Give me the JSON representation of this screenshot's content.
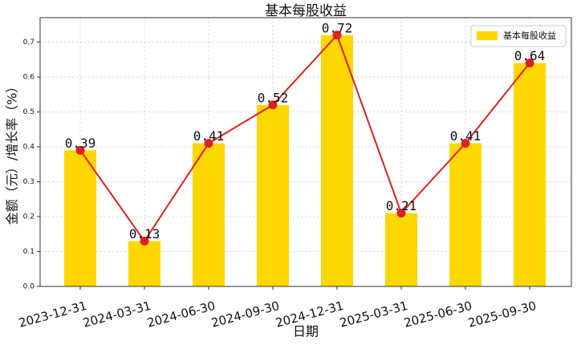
{
  "chart_data": {
    "type": "bar_line",
    "title": "基本每股收益",
    "x_label": "日期",
    "y_label": "金额（元）/增长率（%）",
    "categories": [
      "2023-12-31",
      "2024-03-31",
      "2024-06-30",
      "2024-09-30",
      "2024-12-31",
      "2025-03-31",
      "2025-06-30",
      "2025-09-30"
    ],
    "series": [
      {
        "name": "基本每股收益",
        "color": "#ffd700",
        "line_color": "#e02020",
        "values": [
          0.39,
          0.13,
          0.41,
          0.52,
          0.72,
          0.21,
          0.41,
          0.64
        ]
      }
    ],
    "ylim": [
      0,
      0.77
    ],
    "yticks": [
      {
        "value": 0,
        "label": "0.0"
      },
      0.1,
      0.2,
      0.3,
      0.4,
      0.5,
      0.6,
      0.7
    ],
    "grid": true,
    "legend": "upper right"
  }
}
